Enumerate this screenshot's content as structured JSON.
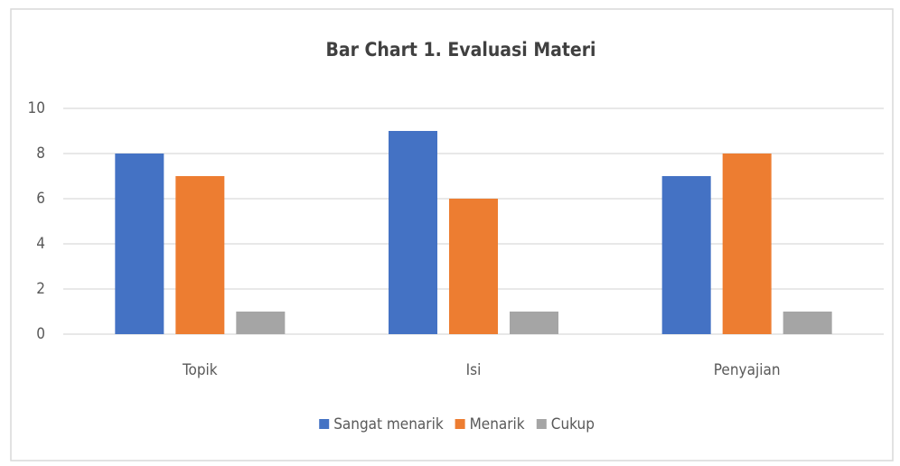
{
  "chart_data": {
    "type": "bar",
    "title": "Bar Chart 1. Evaluasi Materi",
    "categories": [
      "Topik",
      "Isi",
      "Penyajian"
    ],
    "series": [
      {
        "name": "Sangat menarik",
        "color": "#4472c4",
        "values": [
          8,
          9,
          7
        ]
      },
      {
        "name": "Menarik",
        "color": "#ed7d31",
        "values": [
          7,
          6,
          8
        ]
      },
      {
        "name": "Cukup",
        "color": "#a5a5a5",
        "values": [
          1,
          1,
          1
        ]
      }
    ],
    "ylim": [
      0,
      10
    ],
    "yticks": [
      0,
      2,
      4,
      6,
      8,
      10
    ],
    "grid": true,
    "legend": "bottom"
  }
}
